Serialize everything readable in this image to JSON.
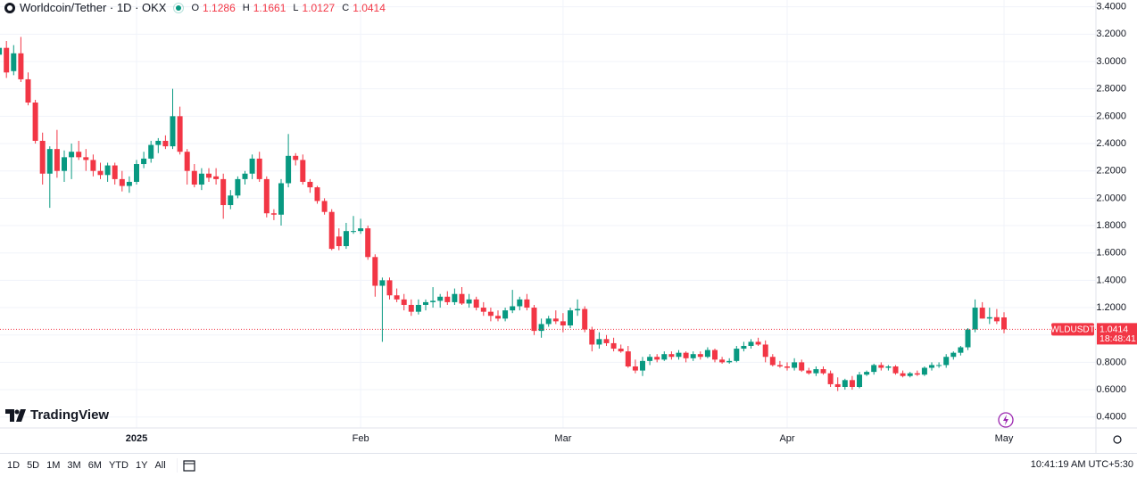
{
  "header": {
    "title": "Worldcoin/Tether · 1D · OKX",
    "ohlc_keys": [
      "O",
      "H",
      "L",
      "C"
    ],
    "brand": "TradingView"
  },
  "chart_data": {
    "type": "candlestick",
    "categories": [
      null,
      null,
      null,
      null,
      null,
      null,
      null,
      null,
      null,
      null,
      null,
      null,
      null,
      null,
      null,
      null,
      null,
      null,
      null,
      "2025",
      null,
      null,
      null,
      null,
      null,
      null,
      null,
      null,
      null,
      null,
      null,
      null,
      null,
      null,
      null,
      null,
      null,
      null,
      null,
      null,
      null,
      null,
      null,
      null,
      null,
      null,
      null,
      null,
      null,
      null,
      "Feb",
      null,
      null,
      null,
      null,
      null,
      null,
      null,
      null,
      null,
      null,
      null,
      null,
      null,
      null,
      null,
      null,
      null,
      null,
      null,
      null,
      null,
      null,
      null,
      null,
      null,
      null,
      null,
      "Mar",
      null,
      null,
      null,
      null,
      null,
      null,
      null,
      null,
      null,
      null,
      null,
      null,
      null,
      null,
      null,
      null,
      null,
      null,
      null,
      null,
      null,
      null,
      null,
      null,
      null,
      null,
      null,
      null,
      null,
      null,
      "Apr",
      null,
      null,
      null,
      null,
      null,
      null,
      null,
      null,
      null,
      null,
      null,
      null,
      null,
      null,
      null,
      null,
      null,
      null,
      null,
      null,
      null,
      null,
      null,
      null,
      null,
      null,
      null,
      null,
      null,
      "May"
    ],
    "open": [
      3.05,
      3.1,
      2.93,
      3.06,
      2.87,
      2.7,
      2.42,
      2.18,
      2.36,
      2.2,
      2.3,
      2.34,
      2.3,
      2.28,
      2.2,
      2.17,
      2.24,
      2.14,
      2.09,
      2.12,
      2.25,
      2.29,
      2.39,
      2.42,
      2.38,
      2.6,
      2.34,
      2.2,
      2.1,
      2.18,
      2.16,
      2.14,
      1.95,
      2.02,
      2.14,
      2.18,
      2.29,
      2.14,
      1.89,
      1.88,
      2.11,
      2.31,
      2.28,
      2.12,
      2.08,
      1.98,
      1.9,
      1.72,
      1.65,
      1.76,
      1.76,
      1.78,
      1.57,
      1.36,
      1.4,
      1.29,
      1.26,
      1.22,
      1.17,
      1.22,
      1.24,
      1.25,
      1.28,
      1.24,
      1.3,
      1.23,
      1.26,
      1.2,
      1.17,
      1.14,
      1.12,
      1.18,
      1.21,
      1.26,
      1.2,
      1.03,
      1.08,
      1.12,
      1.1,
      1.07,
      1.18,
      1.19,
      1.04,
      0.93,
      0.97,
      0.94,
      0.9,
      0.88,
      0.77,
      0.74,
      0.81,
      0.84,
      0.82,
      0.86,
      0.84,
      0.87,
      0.83,
      0.86,
      0.84,
      0.89,
      0.82,
      0.8,
      0.81,
      0.9,
      0.92,
      0.95,
      0.93,
      0.84,
      0.78,
      0.77,
      0.76,
      0.8,
      0.74,
      0.72,
      0.75,
      0.72,
      0.64,
      0.62,
      0.67,
      0.62,
      0.71,
      0.73,
      0.78,
      0.76,
      0.77,
      0.72,
      0.7,
      0.72,
      0.71,
      0.76,
      0.78,
      0.78,
      0.84,
      0.87,
      0.91,
      1.04,
      1.2,
      1.12,
      1.13,
      1.1286
    ],
    "high": [
      3.12,
      3.15,
      3.12,
      3.18,
      2.92,
      2.72,
      2.48,
      2.38,
      2.5,
      2.35,
      2.4,
      2.42,
      2.36,
      2.32,
      2.26,
      2.26,
      2.26,
      2.2,
      2.16,
      2.28,
      2.34,
      2.42,
      2.44,
      2.46,
      2.8,
      2.67,
      2.36,
      2.25,
      2.22,
      2.22,
      2.22,
      2.18,
      2.06,
      2.16,
      2.2,
      2.32,
      2.34,
      2.16,
      1.92,
      2.14,
      2.47,
      2.33,
      2.32,
      2.14,
      2.09,
      2.0,
      1.92,
      1.78,
      1.82,
      1.87,
      1.85,
      1.8,
      1.59,
      1.42,
      1.42,
      1.34,
      1.3,
      1.26,
      1.26,
      1.26,
      1.35,
      1.3,
      1.32,
      1.34,
      1.35,
      1.3,
      1.28,
      1.24,
      1.2,
      1.18,
      1.2,
      1.33,
      1.28,
      1.3,
      1.22,
      1.12,
      1.14,
      1.18,
      1.16,
      1.2,
      1.26,
      1.21,
      1.06,
      1.02,
      1.0,
      0.98,
      0.93,
      0.92,
      0.82,
      0.84,
      0.86,
      0.86,
      0.88,
      0.88,
      0.89,
      0.88,
      0.88,
      0.88,
      0.91,
      0.9,
      0.84,
      0.83,
      0.92,
      0.95,
      0.97,
      0.98,
      0.96,
      0.86,
      0.81,
      0.8,
      0.83,
      0.82,
      0.76,
      0.77,
      0.77,
      0.74,
      0.69,
      0.68,
      0.7,
      0.73,
      0.74,
      0.79,
      0.8,
      0.78,
      0.78,
      0.74,
      0.73,
      0.74,
      0.77,
      0.8,
      0.8,
      0.86,
      0.88,
      0.92,
      1.05,
      1.26,
      1.24,
      1.2,
      1.19,
      1.1661
    ],
    "low": [
      2.98,
      2.88,
      2.9,
      2.85,
      2.68,
      2.4,
      2.1,
      1.93,
      2.15,
      2.12,
      2.14,
      2.28,
      2.2,
      2.16,
      2.14,
      2.12,
      2.1,
      2.05,
      2.04,
      2.1,
      2.22,
      2.26,
      2.33,
      2.36,
      2.36,
      2.32,
      2.1,
      2.08,
      2.06,
      2.12,
      2.1,
      1.85,
      1.92,
      2.0,
      2.1,
      2.14,
      2.12,
      1.86,
      1.84,
      1.8,
      2.08,
      2.24,
      2.1,
      2.04,
      1.96,
      1.88,
      1.62,
      1.62,
      1.63,
      1.74,
      1.74,
      1.55,
      1.28,
      0.95,
      1.26,
      1.24,
      1.18,
      1.14,
      1.15,
      1.18,
      1.2,
      1.2,
      1.22,
      1.22,
      1.22,
      1.2,
      1.18,
      1.14,
      1.1,
      1.1,
      1.1,
      1.16,
      1.18,
      1.18,
      1.0,
      0.98,
      1.06,
      1.08,
      1.02,
      1.05,
      1.14,
      1.02,
      0.88,
      0.9,
      0.92,
      0.88,
      0.87,
      0.76,
      0.72,
      0.7,
      0.78,
      0.8,
      0.81,
      0.82,
      0.82,
      0.8,
      0.81,
      0.82,
      0.83,
      0.8,
      0.79,
      0.79,
      0.8,
      0.88,
      0.9,
      0.92,
      0.8,
      0.77,
      0.76,
      0.74,
      0.74,
      0.73,
      0.71,
      0.7,
      0.71,
      0.62,
      0.59,
      0.6,
      0.6,
      0.61,
      0.7,
      0.71,
      0.74,
      0.74,
      0.71,
      0.69,
      0.69,
      0.7,
      0.7,
      0.74,
      0.76,
      0.76,
      0.82,
      0.85,
      0.89,
      1.02,
      1.12,
      1.08,
      1.08,
      1.0127
    ],
    "close": [
      3.1,
      2.92,
      3.06,
      2.87,
      2.7,
      2.42,
      2.18,
      2.36,
      2.2,
      2.3,
      2.34,
      2.3,
      2.28,
      2.2,
      2.17,
      2.24,
      2.14,
      2.09,
      2.12,
      2.25,
      2.29,
      2.39,
      2.42,
      2.38,
      2.6,
      2.34,
      2.2,
      2.1,
      2.18,
      2.15,
      2.14,
      1.95,
      2.02,
      2.14,
      2.18,
      2.29,
      2.14,
      1.89,
      1.88,
      2.11,
      2.31,
      2.28,
      2.12,
      2.08,
      1.98,
      1.9,
      1.63,
      1.65,
      1.76,
      1.76,
      1.78,
      1.57,
      1.36,
      1.4,
      1.29,
      1.26,
      1.22,
      1.17,
      1.22,
      1.24,
      1.25,
      1.28,
      1.24,
      1.3,
      1.23,
      1.26,
      1.2,
      1.17,
      1.14,
      1.12,
      1.18,
      1.21,
      1.26,
      1.2,
      1.03,
      1.08,
      1.12,
      1.1,
      1.07,
      1.18,
      1.19,
      1.04,
      0.93,
      0.97,
      0.94,
      0.9,
      0.88,
      0.77,
      0.74,
      0.81,
      0.84,
      0.82,
      0.86,
      0.84,
      0.87,
      0.83,
      0.86,
      0.84,
      0.89,
      0.82,
      0.8,
      0.81,
      0.9,
      0.92,
      0.95,
      0.93,
      0.84,
      0.78,
      0.77,
      0.76,
      0.8,
      0.74,
      0.72,
      0.75,
      0.72,
      0.64,
      0.62,
      0.67,
      0.62,
      0.71,
      0.73,
      0.78,
      0.76,
      0.77,
      0.72,
      0.7,
      0.72,
      0.71,
      0.76,
      0.78,
      0.78,
      0.84,
      0.87,
      0.91,
      1.04,
      1.2,
      1.12,
      1.13,
      1.1,
      1.0414
    ],
    "up_color": "#089981",
    "down_color": "#f23645",
    "ylim": [
      0.32,
      3.45
    ],
    "yticks": [
      {
        "value": 0.4,
        "label": "0.4000"
      },
      {
        "value": 0.6,
        "label": "0.6000"
      },
      {
        "value": 0.8,
        "label": "0.8000"
      },
      {
        "value": 1.0,
        "label": "1.0000"
      },
      {
        "value": 1.2,
        "label": "1.2000"
      },
      {
        "value": 1.4,
        "label": "1.4000"
      },
      {
        "value": 1.6,
        "label": "1.6000"
      },
      {
        "value": 1.8,
        "label": "1.8000"
      },
      {
        "value": 2.0,
        "label": "2.0000"
      },
      {
        "value": 2.2,
        "label": "2.2000"
      },
      {
        "value": 2.4,
        "label": "2.4000"
      },
      {
        "value": 2.6,
        "label": "2.6000"
      },
      {
        "value": 2.8,
        "label": "2.8000"
      },
      {
        "value": 3.0,
        "label": "3.0000"
      },
      {
        "value": 3.2,
        "label": "3.2000"
      },
      {
        "value": 3.4,
        "label": "3.4000"
      }
    ],
    "grid": true,
    "symbol_code": "WLDUSDT",
    "countdown": "18:48:41"
  },
  "toolbar": {
    "ranges": [
      "1D",
      "5D",
      "1M",
      "3M",
      "6M",
      "YTD",
      "1Y",
      "All"
    ],
    "clock": "10:41:19 AM UTC+5:30"
  }
}
